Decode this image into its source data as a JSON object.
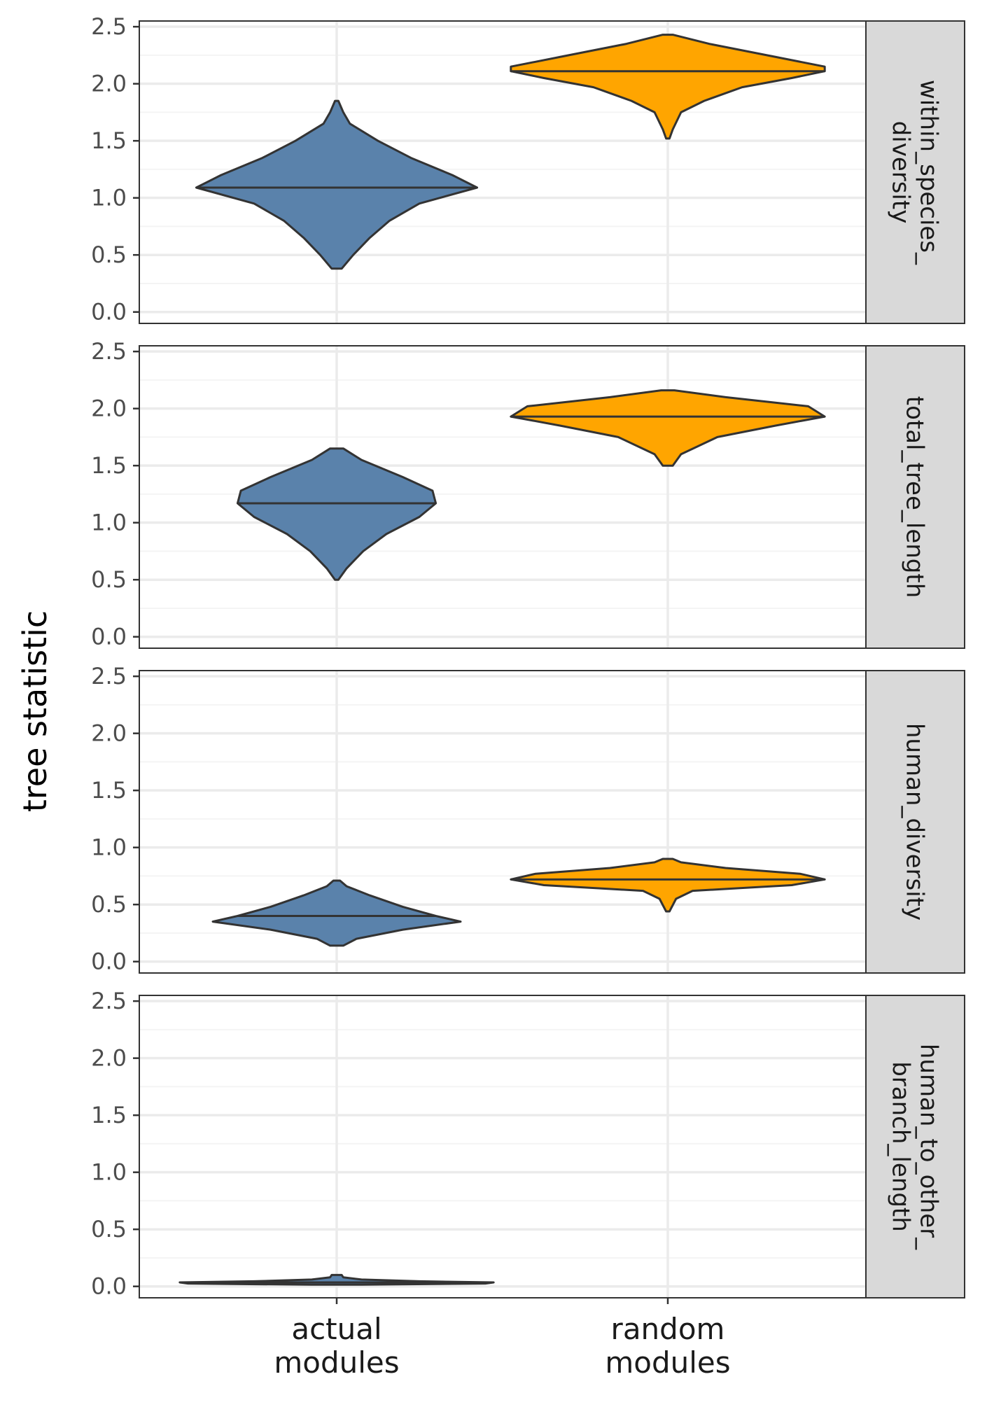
{
  "chart_data": {
    "type": "violin",
    "ylabel": "tree statistic",
    "categories": [
      "actual\nmodules",
      "random\nmodules"
    ],
    "y_ticks": [
      "0.0",
      "0.5",
      "1.0",
      "1.5",
      "2.0",
      "2.5"
    ],
    "ylim": [
      -0.1,
      2.55
    ],
    "grid": true,
    "fill_colors": {
      "actual\nmodules": "#5A82AB",
      "random\nmodules": "#FFA500"
    },
    "panels": [
      {
        "facet": "within_species_\ndiversity",
        "violins": [
          {
            "category": "actual\nmodules",
            "min": 0.38,
            "max": 1.85,
            "median": 1.09,
            "profile": [
              [
                0.38,
                0.03
              ],
              [
                0.5,
                0.1
              ],
              [
                0.65,
                0.2
              ],
              [
                0.8,
                0.32
              ],
              [
                0.95,
                0.5
              ],
              [
                1.09,
                0.85
              ],
              [
                1.2,
                0.7
              ],
              [
                1.35,
                0.45
              ],
              [
                1.5,
                0.25
              ],
              [
                1.65,
                0.08
              ],
              [
                1.75,
                0.04
              ],
              [
                1.85,
                0.01
              ]
            ]
          },
          {
            "category": "random\nmodules",
            "min": 1.52,
            "max": 2.43,
            "median": 2.11,
            "profile": [
              [
                1.52,
                0.01
              ],
              [
                1.6,
                0.03
              ],
              [
                1.75,
                0.08
              ],
              [
                1.85,
                0.22
              ],
              [
                1.97,
                0.45
              ],
              [
                2.05,
                0.75
              ],
              [
                2.11,
                0.95
              ],
              [
                2.15,
                0.95
              ],
              [
                2.25,
                0.6
              ],
              [
                2.35,
                0.25
              ],
              [
                2.43,
                0.03
              ]
            ]
          }
        ]
      },
      {
        "facet": "total_tree_length",
        "violins": [
          {
            "category": "actual\nmodules",
            "min": 0.5,
            "max": 1.65,
            "median": 1.17,
            "profile": [
              [
                0.5,
                0.01
              ],
              [
                0.6,
                0.06
              ],
              [
                0.75,
                0.16
              ],
              [
                0.9,
                0.3
              ],
              [
                1.05,
                0.5
              ],
              [
                1.17,
                0.6
              ],
              [
                1.28,
                0.58
              ],
              [
                1.4,
                0.4
              ],
              [
                1.55,
                0.15
              ],
              [
                1.65,
                0.04
              ]
            ]
          },
          {
            "category": "random\nmodules",
            "min": 1.5,
            "max": 2.16,
            "median": 1.93,
            "profile": [
              [
                1.5,
                0.03
              ],
              [
                1.6,
                0.08
              ],
              [
                1.75,
                0.3
              ],
              [
                1.85,
                0.65
              ],
              [
                1.93,
                0.95
              ],
              [
                2.02,
                0.85
              ],
              [
                2.1,
                0.35
              ],
              [
                2.16,
                0.04
              ]
            ]
          }
        ]
      },
      {
        "facet": "human_diversity",
        "violins": [
          {
            "category": "actual\nmodules",
            "min": 0.14,
            "max": 0.71,
            "median": 0.4,
            "profile": [
              [
                0.14,
                0.04
              ],
              [
                0.2,
                0.12
              ],
              [
                0.28,
                0.4
              ],
              [
                0.35,
                0.75
              ],
              [
                0.4,
                0.6
              ],
              [
                0.48,
                0.4
              ],
              [
                0.58,
                0.2
              ],
              [
                0.66,
                0.06
              ],
              [
                0.71,
                0.02
              ]
            ]
          },
          {
            "category": "random\nmodules",
            "min": 0.44,
            "max": 0.9,
            "median": 0.72,
            "profile": [
              [
                0.44,
                0.01
              ],
              [
                0.55,
                0.05
              ],
              [
                0.62,
                0.15
              ],
              [
                0.67,
                0.75
              ],
              [
                0.72,
                0.95
              ],
              [
                0.77,
                0.8
              ],
              [
                0.82,
                0.35
              ],
              [
                0.87,
                0.08
              ],
              [
                0.9,
                0.03
              ]
            ]
          }
        ]
      },
      {
        "facet": "human_to_other_\nbranch_length",
        "violins": [
          {
            "category": "actual\nmodules",
            "min": 0.015,
            "max": 0.1,
            "median": 0.035,
            "profile": [
              [
                0.015,
                0.15
              ],
              [
                0.025,
                0.9
              ],
              [
                0.035,
                0.95
              ],
              [
                0.045,
                0.5
              ],
              [
                0.06,
                0.15
              ],
              [
                0.08,
                0.04
              ],
              [
                0.1,
                0.03
              ]
            ]
          }
        ]
      }
    ]
  }
}
